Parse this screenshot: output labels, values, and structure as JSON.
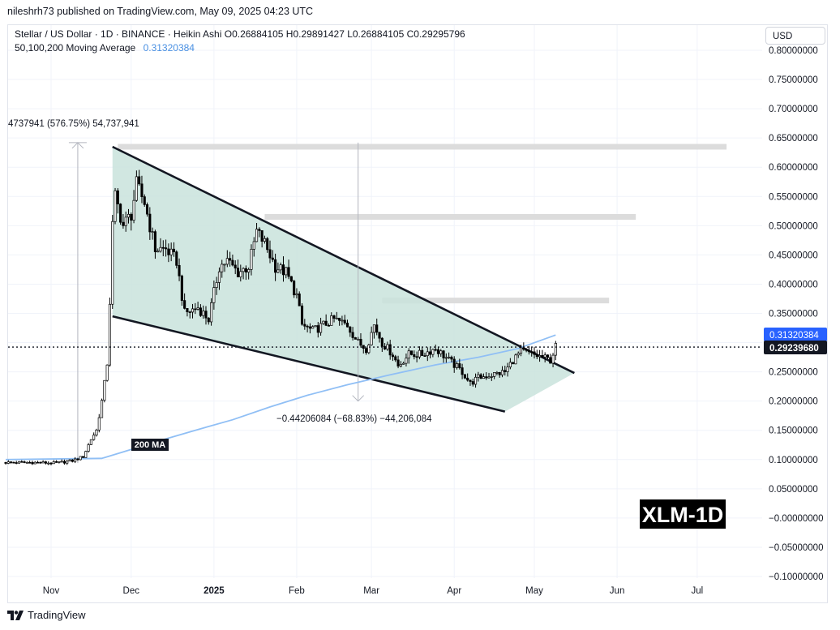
{
  "publisher": "nileshrh73 published on TradingView.com, May 09, 2025 04:23 UTC",
  "legend": {
    "line1": "Stellar / US Dollar · 1D · BINANCE · Heikin Ashi  O0.26884105  H0.29891427  L0.26884105  C0.29295796",
    "ma_label": "50,100,200 Moving Average",
    "ma_value": "0.31320384"
  },
  "currency": "USD",
  "brand": "TradingView",
  "colors": {
    "candle": "#000000",
    "ma200": "#90bff5",
    "wedge_fill": "#c9e3dc",
    "wedge_line": "#131722",
    "zone": "#dcdcdc",
    "ma_badge": "#2962ff",
    "price_badge": "#131722"
  },
  "annotations": {
    "top_measure": "4737941 (576.75%) 54,737,941",
    "bottom_measure": "−0.44206084 (−68.83%) −44,206,084",
    "ma_tag": "200 MA",
    "watermark": "XLM-1D"
  },
  "chart_data": {
    "type": "candlestick",
    "title": "Stellar / US Dollar · 1D · BINANCE · Heikin Ashi",
    "ylim": [
      -0.1,
      0.8
    ],
    "y_ticks": [
      "0.80000000",
      "0.75000000",
      "0.70000000",
      "0.65000000",
      "0.60000000",
      "0.55000000",
      "0.50000000",
      "0.45000000",
      "0.40000000",
      "0.35000000",
      "0.30000000",
      "0.25000000",
      "0.20000000",
      "0.15000000",
      "0.10000000",
      "0.05000000",
      "−0.00000000",
      "−0.05000000",
      "−0.10000000"
    ],
    "y_tick_values": [
      0.8,
      0.75,
      0.7,
      0.65,
      0.6,
      0.55,
      0.5,
      0.45,
      0.4,
      0.35,
      0.3,
      0.25,
      0.2,
      0.15,
      0.1,
      0.05,
      0.0,
      -0.05,
      -0.1
    ],
    "x_ticks": [
      {
        "label": "Nov",
        "date": "2024-11-01"
      },
      {
        "label": "Dec",
        "date": "2024-12-01"
      },
      {
        "label": "2025",
        "date": "2025-01-01",
        "bold": true
      },
      {
        "label": "Feb",
        "date": "2025-02-01"
      },
      {
        "label": "Mar",
        "date": "2025-03-01"
      },
      {
        "label": "Apr",
        "date": "2025-04-01"
      },
      {
        "label": "May",
        "date": "2025-05-01"
      },
      {
        "label": "Jun",
        "date": "2025-06-01"
      },
      {
        "label": "Jul",
        "date": "2025-07-01"
      }
    ],
    "current_price": 0.2923968,
    "current_price_label": "0.29239680",
    "ma_price": 0.31320384,
    "ma_price_label": "0.31320384",
    "price_series": [
      {
        "date": "2024-10-15",
        "close": 0.095
      },
      {
        "date": "2024-10-25",
        "close": 0.095
      },
      {
        "date": "2024-11-03",
        "close": 0.094
      },
      {
        "date": "2024-11-09",
        "close": 0.098
      },
      {
        "date": "2024-11-13",
        "close": 0.105
      },
      {
        "date": "2024-11-16",
        "close": 0.135
      },
      {
        "date": "2024-11-18",
        "close": 0.15
      },
      {
        "date": "2024-11-20",
        "close": 0.2
      },
      {
        "date": "2024-11-21",
        "close": 0.23
      },
      {
        "date": "2024-11-22",
        "close": 0.265
      },
      {
        "date": "2024-11-23",
        "close": 0.37
      },
      {
        "date": "2024-11-24",
        "close": 0.5
      },
      {
        "date": "2024-11-25",
        "close": 0.55
      },
      {
        "date": "2024-11-28",
        "close": 0.5
      },
      {
        "date": "2024-12-01",
        "close": 0.52
      },
      {
        "date": "2024-12-03",
        "close": 0.57
      },
      {
        "date": "2024-12-06",
        "close": 0.54
      },
      {
        "date": "2024-12-10",
        "close": 0.46
      },
      {
        "date": "2024-12-14",
        "close": 0.46
      },
      {
        "date": "2024-12-18",
        "close": 0.44
      },
      {
        "date": "2024-12-21",
        "close": 0.35
      },
      {
        "date": "2024-12-26",
        "close": 0.36
      },
      {
        "date": "2024-12-30",
        "close": 0.34
      },
      {
        "date": "2025-01-03",
        "close": 0.43
      },
      {
        "date": "2025-01-06",
        "close": 0.44
      },
      {
        "date": "2025-01-10",
        "close": 0.42
      },
      {
        "date": "2025-01-14",
        "close": 0.43
      },
      {
        "date": "2025-01-17",
        "close": 0.49
      },
      {
        "date": "2025-01-20",
        "close": 0.47
      },
      {
        "date": "2025-01-24",
        "close": 0.43
      },
      {
        "date": "2025-01-28",
        "close": 0.42
      },
      {
        "date": "2025-02-01",
        "close": 0.38
      },
      {
        "date": "2025-02-03",
        "close": 0.33
      },
      {
        "date": "2025-02-07",
        "close": 0.32
      },
      {
        "date": "2025-02-11",
        "close": 0.33
      },
      {
        "date": "2025-02-15",
        "close": 0.34
      },
      {
        "date": "2025-02-20",
        "close": 0.33
      },
      {
        "date": "2025-02-24",
        "close": 0.3
      },
      {
        "date": "2025-02-27",
        "close": 0.29
      },
      {
        "date": "2025-03-02",
        "close": 0.33
      },
      {
        "date": "2025-03-05",
        "close": 0.3
      },
      {
        "date": "2025-03-09",
        "close": 0.28
      },
      {
        "date": "2025-03-11",
        "close": 0.26
      },
      {
        "date": "2025-03-15",
        "close": 0.28
      },
      {
        "date": "2025-03-20",
        "close": 0.28
      },
      {
        "date": "2025-03-25",
        "close": 0.29
      },
      {
        "date": "2025-03-30",
        "close": 0.27
      },
      {
        "date": "2025-04-04",
        "close": 0.25
      },
      {
        "date": "2025-04-07",
        "close": 0.23
      },
      {
        "date": "2025-04-10",
        "close": 0.24
      },
      {
        "date": "2025-04-15",
        "close": 0.245
      },
      {
        "date": "2025-04-20",
        "close": 0.25
      },
      {
        "date": "2025-04-23",
        "close": 0.27
      },
      {
        "date": "2025-04-26",
        "close": 0.285
      },
      {
        "date": "2025-04-30",
        "close": 0.28
      },
      {
        "date": "2025-05-04",
        "close": 0.275
      },
      {
        "date": "2025-05-07",
        "close": 0.27
      },
      {
        "date": "2025-05-09",
        "close": 0.293
      }
    ],
    "ma200_series": [
      {
        "date": "2024-10-15",
        "value": 0.1
      },
      {
        "date": "2024-11-20",
        "value": 0.102
      },
      {
        "date": "2024-11-28",
        "value": 0.113
      },
      {
        "date": "2024-12-10",
        "value": 0.13
      },
      {
        "date": "2024-12-25",
        "value": 0.15
      },
      {
        "date": "2025-01-08",
        "value": 0.168
      },
      {
        "date": "2025-01-22",
        "value": 0.19
      },
      {
        "date": "2025-02-05",
        "value": 0.21
      },
      {
        "date": "2025-02-20",
        "value": 0.228
      },
      {
        "date": "2025-03-08",
        "value": 0.245
      },
      {
        "date": "2025-03-25",
        "value": 0.262
      },
      {
        "date": "2025-04-10",
        "value": 0.275
      },
      {
        "date": "2025-04-25",
        "value": 0.29
      },
      {
        "date": "2025-05-09",
        "value": 0.313
      }
    ],
    "wedge": {
      "upper": [
        {
          "date": "2024-11-24",
          "price": 0.635
        },
        {
          "date": "2025-05-16",
          "price": 0.248
        }
      ],
      "lower": [
        {
          "date": "2024-11-24",
          "price": 0.345
        },
        {
          "date": "2025-04-20",
          "price": 0.182
        }
      ],
      "fill_end": [
        {
          "date": "2025-05-16",
          "price": 0.248
        },
        {
          "date": "2025-04-20",
          "price": 0.182
        }
      ]
    },
    "resistance_zones": [
      {
        "from": "2024-11-26",
        "to": "2025-07-12",
        "price": 0.635
      },
      {
        "from": "2025-01-20",
        "to": "2025-06-08",
        "price": 0.515
      },
      {
        "from": "2025-03-05",
        "to": "2025-05-29",
        "price": 0.372
      }
    ],
    "measure_up": {
      "date": "2024-11-11",
      "from": 0.094,
      "to": 0.642
    },
    "measure_down": {
      "date": "2025-02-24",
      "from": 0.642,
      "to": 0.2
    }
  }
}
